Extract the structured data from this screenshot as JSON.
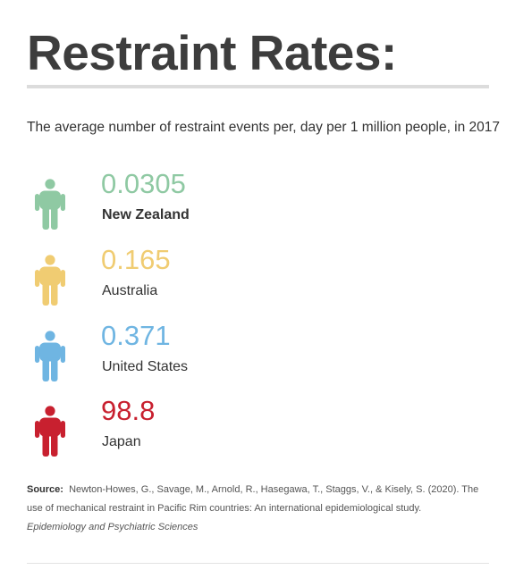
{
  "title": "Restraint Rates:",
  "subtitle": "The average number of restraint events per, day per 1 million people, in 2017",
  "entries": [
    {
      "value": "0.0305",
      "country": "New Zealand",
      "color": "#8fc9a3",
      "icon": "person-icon"
    },
    {
      "value": "0.165",
      "country": "Australia",
      "color": "#f0cc72",
      "icon": "person-icon"
    },
    {
      "value": "0.371",
      "country": "United States",
      "color": "#6fb5e2",
      "icon": "person-icon"
    },
    {
      "value": "98.8",
      "country": "Japan",
      "color": "#c8202f",
      "icon": "person-icon"
    }
  ],
  "source": {
    "label": "Source:",
    "text": "Newton-Howes, G., Savage, M., Arnold, R., Hasegawa, T., Staggs, V., & Kisely, S. (2020). The use of mechanical restraint in Pacific Rim countries: An international epidemiological study.",
    "journal": "Epidemiology and Psychiatric Sciences"
  }
}
